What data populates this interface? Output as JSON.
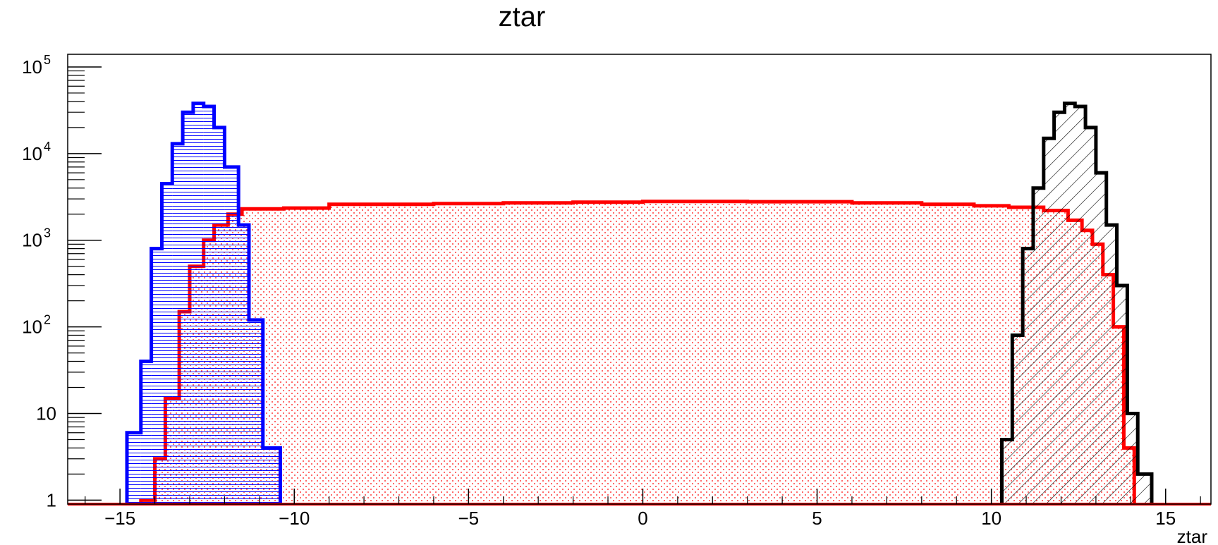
{
  "chart_data": {
    "type": "histogram",
    "title": "ztar",
    "xlabel": "ztar",
    "ylabel": "",
    "xlim": [
      -16.5,
      16.3
    ],
    "ylim": [
      0.9,
      140000
    ],
    "y_scale": "log",
    "x_ticks": [
      -15,
      -10,
      -5,
      0,
      5,
      10,
      15
    ],
    "y_ticks": [
      {
        "value": 1,
        "label": "1",
        "exp": ""
      },
      {
        "value": 10,
        "label": "10",
        "exp": ""
      },
      {
        "value": 100,
        "label": "10",
        "exp": "2"
      },
      {
        "value": 1000,
        "label": "10",
        "exp": "3"
      },
      {
        "value": 10000,
        "label": "10",
        "exp": "4"
      },
      {
        "value": 100000,
        "label": "10",
        "exp": "5"
      }
    ],
    "grid": false,
    "series": [
      {
        "color": "#ff0000",
        "fill_pattern": "dots",
        "bins": [
          {
            "x0": -14.4,
            "x1": -14.0,
            "value": 1
          },
          {
            "x0": -14.0,
            "x1": -13.7,
            "value": 3
          },
          {
            "x0": -13.7,
            "x1": -13.3,
            "value": 15
          },
          {
            "x0": -13.3,
            "x1": -13.0,
            "value": 150
          },
          {
            "x0": -13.0,
            "x1": -12.6,
            "value": 500
          },
          {
            "x0": -12.6,
            "x1": -12.3,
            "value": 1000
          },
          {
            "x0": -12.3,
            "x1": -11.9,
            "value": 1500
          },
          {
            "x0": -11.9,
            "x1": -11.5,
            "value": 2000
          },
          {
            "x0": -11.5,
            "x1": -10.3,
            "value": 2300
          },
          {
            "x0": -10.3,
            "x1": -9.0,
            "value": 2350
          },
          {
            "x0": -9.0,
            "x1": -6.0,
            "value": 2600
          },
          {
            "x0": -6.0,
            "x1": -4.0,
            "value": 2650
          },
          {
            "x0": -4.0,
            "x1": -2.0,
            "value": 2700
          },
          {
            "x0": -2.0,
            "x1": 0.0,
            "value": 2750
          },
          {
            "x0": 0.0,
            "x1": 3.0,
            "value": 2800
          },
          {
            "x0": 3.0,
            "x1": 6.0,
            "value": 2780
          },
          {
            "x0": 6.0,
            "x1": 8.0,
            "value": 2700
          },
          {
            "x0": 8.0,
            "x1": 9.5,
            "value": 2600
          },
          {
            "x0": 9.5,
            "x1": 10.5,
            "value": 2500
          },
          {
            "x0": 10.5,
            "x1": 11.5,
            "value": 2400
          },
          {
            "x0": 11.5,
            "x1": 12.2,
            "value": 2200
          },
          {
            "x0": 12.2,
            "x1": 12.6,
            "value": 1700
          },
          {
            "x0": 12.6,
            "x1": 12.9,
            "value": 1300
          },
          {
            "x0": 12.9,
            "x1": 13.2,
            "value": 900
          },
          {
            "x0": 13.2,
            "x1": 13.5,
            "value": 400
          },
          {
            "x0": 13.5,
            "x1": 13.8,
            "value": 100
          },
          {
            "x0": 13.8,
            "x1": 14.1,
            "value": 4
          }
        ]
      },
      {
        "color": "#0000ff",
        "fill_pattern": "horizontal",
        "bins": [
          {
            "x0": -14.8,
            "x1": -14.4,
            "value": 6
          },
          {
            "x0": -14.4,
            "x1": -14.1,
            "value": 40
          },
          {
            "x0": -14.1,
            "x1": -13.8,
            "value": 800
          },
          {
            "x0": -13.8,
            "x1": -13.5,
            "value": 4500
          },
          {
            "x0": -13.5,
            "x1": -13.2,
            "value": 13000
          },
          {
            "x0": -13.2,
            "x1": -12.9,
            "value": 30000
          },
          {
            "x0": -12.9,
            "x1": -12.6,
            "value": 38000
          },
          {
            "x0": -12.6,
            "x1": -12.3,
            "value": 35000
          },
          {
            "x0": -12.3,
            "x1": -12.0,
            "value": 20000
          },
          {
            "x0": -12.0,
            "x1": -11.6,
            "value": 7000
          },
          {
            "x0": -11.6,
            "x1": -11.3,
            "value": 1500
          },
          {
            "x0": -11.3,
            "x1": -10.9,
            "value": 120
          },
          {
            "x0": -10.9,
            "x1": -10.4,
            "value": 4
          }
        ]
      },
      {
        "color": "#000000",
        "fill_pattern": "diagonal",
        "bins": [
          {
            "x0": 10.3,
            "x1": 10.6,
            "value": 5
          },
          {
            "x0": 10.6,
            "x1": 10.9,
            "value": 80
          },
          {
            "x0": 10.9,
            "x1": 11.2,
            "value": 800
          },
          {
            "x0": 11.2,
            "x1": 11.5,
            "value": 4000
          },
          {
            "x0": 11.5,
            "x1": 11.8,
            "value": 15000
          },
          {
            "x0": 11.8,
            "x1": 12.1,
            "value": 30000
          },
          {
            "x0": 12.1,
            "x1": 12.4,
            "value": 38000
          },
          {
            "x0": 12.4,
            "x1": 12.7,
            "value": 35000
          },
          {
            "x0": 12.7,
            "x1": 13.0,
            "value": 20000
          },
          {
            "x0": 13.0,
            "x1": 13.3,
            "value": 6000
          },
          {
            "x0": 13.3,
            "x1": 13.6,
            "value": 1500
          },
          {
            "x0": 13.6,
            "x1": 13.9,
            "value": 300
          },
          {
            "x0": 13.9,
            "x1": 14.2,
            "value": 10
          },
          {
            "x0": 14.2,
            "x1": 14.6,
            "value": 2
          }
        ]
      }
    ]
  }
}
